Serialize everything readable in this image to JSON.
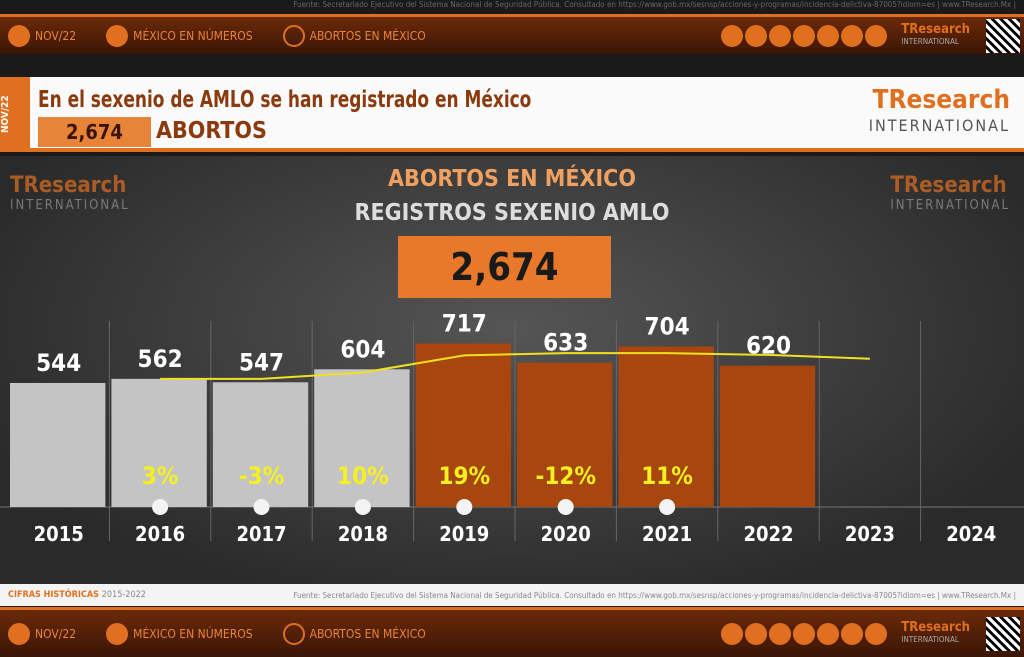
{
  "source_note": "Fuente: Secretariado Ejecutivo del Sistema Nacional de Seguridad Pública. Consultado en https://www.gob.mx/sesnsp/acciones-y-programas/incidencia-delictiva-87005?idiom=es | www.TResearch.Mx |",
  "nav": {
    "date": "NOV/22",
    "item1": "MÉXICO EN NÚMEROS",
    "item2": "ABORTOS EN MÉXICO",
    "logo": "TResearch",
    "logo_sub": "INTERNATIONAL"
  },
  "header": {
    "tag": "NOV/22",
    "title": "En el sexenio de AMLO se han registrado en México",
    "number": "2,674",
    "label": "ABORTOS",
    "logo": "TResearch",
    "logo_sub": "INTERNATIONAL"
  },
  "footer": {
    "left": "CIFRAS HISTÓRICAS",
    "years": "2015-2022"
  },
  "colors": {
    "accent": "#e07020",
    "gray_bar": "#c4c4c4",
    "orange_bar": "#a8460f",
    "trend": "#f0e020"
  },
  "chart_data": {
    "type": "bar",
    "title": "ABORTOS EN MÉXICO",
    "subtitle": "REGISTROS SEXENIO AMLO",
    "total": "2,674",
    "categories": [
      "2015",
      "2016",
      "2017",
      "2018",
      "2019",
      "2020",
      "2021",
      "2022",
      "2023",
      "2024"
    ],
    "values": [
      544,
      562,
      547,
      604,
      717,
      633,
      704,
      620,
      null,
      null
    ],
    "pct_change": [
      null,
      "3%",
      "-3%",
      "10%",
      "19%",
      "-12%",
      "11%",
      null,
      null,
      null
    ],
    "trend_line": [
      null,
      562,
      562,
      590,
      665,
      675,
      675,
      667,
      650,
      null
    ],
    "gray_years": [
      "2015",
      "2016",
      "2017",
      "2018"
    ],
    "ylim": [
      0,
      800
    ],
    "grid": false
  }
}
